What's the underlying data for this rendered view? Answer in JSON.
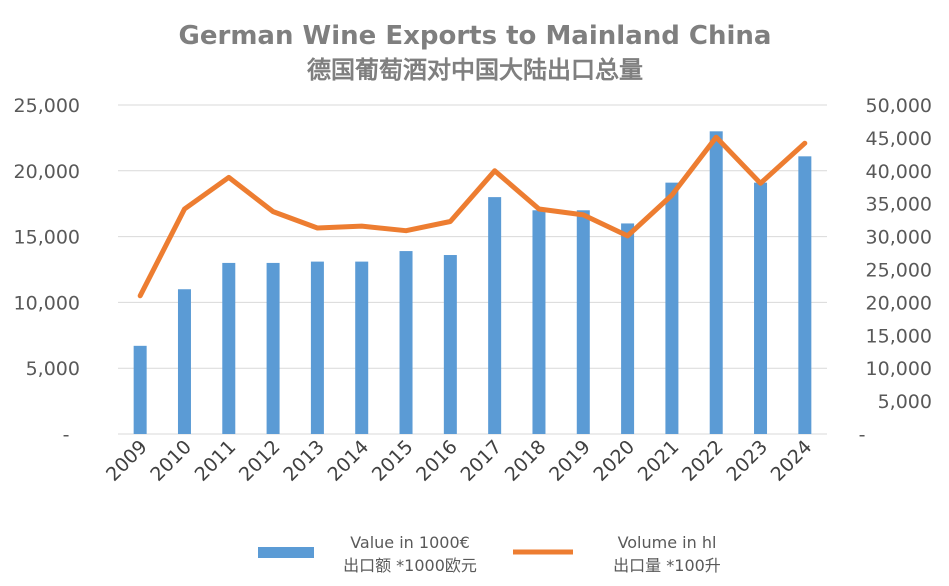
{
  "chart_data": {
    "type": "bar",
    "title": "German Wine Exports to Mainland China",
    "subtitle": "德国葡萄酒对中国大陆出口总量",
    "categories": [
      "2009",
      "2010",
      "2011",
      "2012",
      "2013",
      "2014",
      "2015",
      "2016",
      "2017",
      "2018",
      "2019",
      "2020",
      "2021",
      "2022",
      "2023",
      "2024"
    ],
    "series": [
      {
        "name": "Value in 1000€",
        "name_cn": "出口额 *1000欧元",
        "type": "bar",
        "axis": "left",
        "color": "#5b9bd5",
        "values": [
          6700,
          11000,
          13000,
          13000,
          13100,
          13100,
          13900,
          13600,
          18000,
          17000,
          17000,
          16000,
          19100,
          23000,
          19100,
          21100
        ]
      },
      {
        "name": "Volume in hl",
        "name_cn": "出口量 *100升",
        "type": "line",
        "axis": "right",
        "color": "#ed7d31",
        "values": [
          21000,
          34200,
          39000,
          33800,
          31300,
          31600,
          30900,
          32300,
          40000,
          34200,
          33300,
          30100,
          36300,
          45100,
          38100,
          44200
        ]
      }
    ],
    "y_left": {
      "min": 0,
      "max": 25000,
      "ticks": [
        "-",
        "5,000",
        "10,000",
        "15,000",
        "20,000",
        "25,000"
      ]
    },
    "y_right": {
      "min": 0,
      "max": 50000,
      "ticks": [
        "-",
        "5,000",
        "10,000",
        "15,000",
        "20,000",
        "25,000",
        "30,000",
        "35,000",
        "40,000",
        "45,000",
        "50,000"
      ]
    },
    "grid": true,
    "legend": "bottom"
  }
}
